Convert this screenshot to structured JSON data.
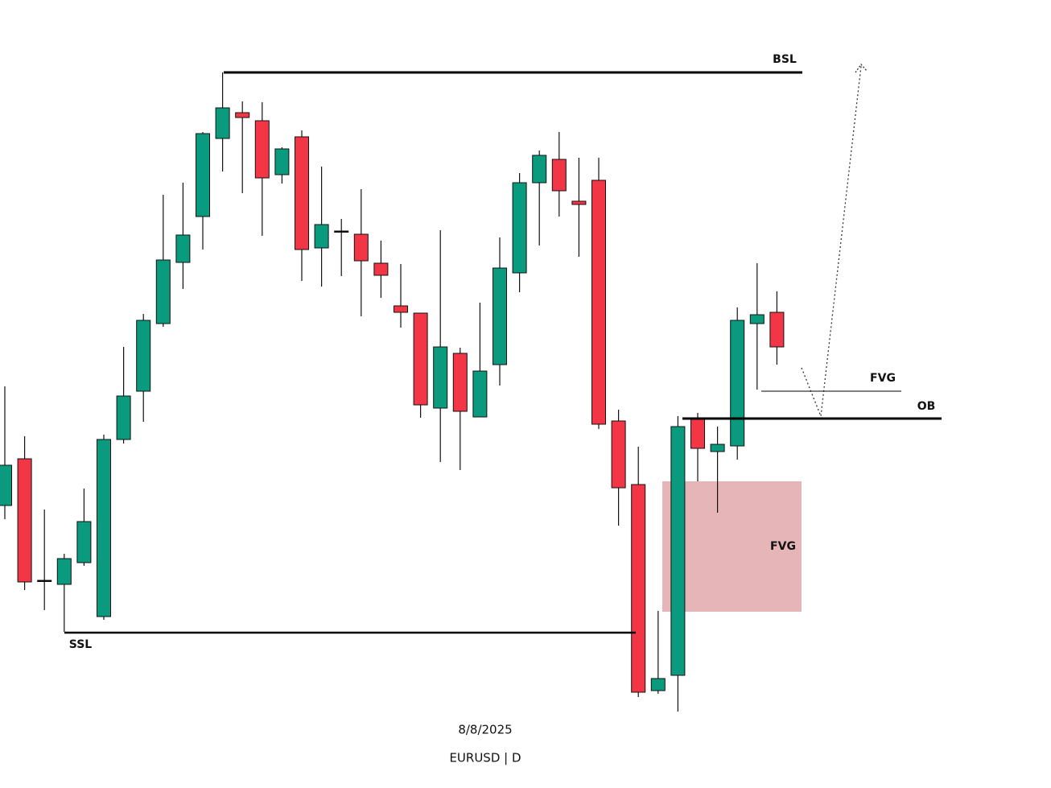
{
  "chart_data": {
    "type": "candlestick",
    "open": [
      372,
      430,
      279,
      274,
      301,
      234,
      454,
      514,
      598,
      674,
      731,
      828,
      860,
      850,
      783,
      830,
      692,
      713,
      709,
      673,
      620,
      611,
      493,
      561,
      482,
      547,
      661,
      773,
      802,
      750,
      776,
      477,
      398,
      142,
      161,
      479,
      439,
      446,
      598,
      612
    ],
    "high": [
      520,
      458,
      367,
      312,
      393,
      460,
      569,
      610,
      758,
      773,
      836,
      910,
      874,
      873,
      817,
      838,
      793,
      728,
      765,
      701,
      672,
      611,
      714,
      568,
      624,
      705,
      785,
      813,
      836,
      804,
      804,
      491,
      445,
      241,
      483,
      487,
      470,
      618,
      673,
      638
    ],
    "low": [
      355,
      267,
      242,
      215,
      297,
      230,
      449,
      476,
      594,
      641,
      690,
      787,
      760,
      707,
      772,
      651,
      644,
      657,
      607,
      630,
      593,
      481,
      426,
      416,
      482,
      521,
      637,
      695,
      731,
      681,
      467,
      347,
      134,
      138,
      116,
      402,
      363,
      429,
      516,
      547
    ],
    "close": [
      422,
      277,
      279,
      306,
      352,
      454,
      508,
      602,
      677,
      708,
      834,
      866,
      854,
      779,
      815,
      690,
      721,
      713,
      676,
      658,
      612,
      497,
      569,
      489,
      539,
      667,
      773,
      807,
      763,
      746,
      473,
      394,
      140,
      157,
      470,
      443,
      448,
      602,
      609,
      569
    ],
    "up_color": "#0a9a7e",
    "down_color": "#f23645",
    "doji_color": "#000000",
    "ylim": [
      21,
      1000
    ],
    "levels": [
      {
        "label": "BSL",
        "value": 910
      },
      {
        "label": "SSL",
        "value": 214
      },
      {
        "label": "OB",
        "value": 480
      },
      {
        "label": "FVG",
        "value": 514
      }
    ],
    "zone": {
      "label": "FVG",
      "top": 402,
      "bottom": 240,
      "color": "#e6b5b8"
    },
    "date": "8/8/2025",
    "symbol": "EURUSD | D"
  }
}
